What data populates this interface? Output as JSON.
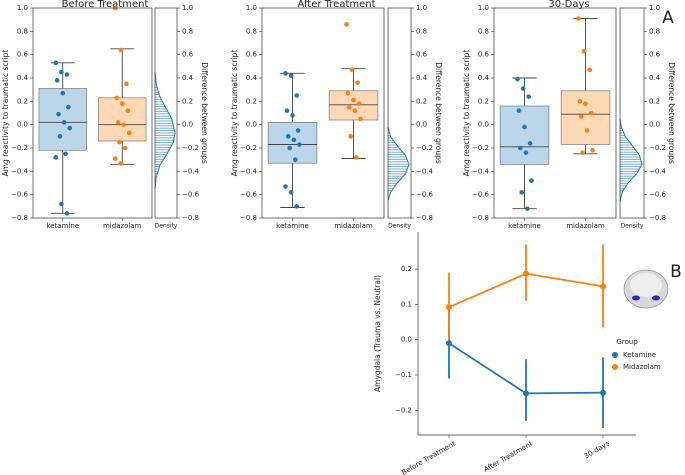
{
  "chart_data": [
    {
      "type": "box",
      "panel_label": "A",
      "title": "Before Treatment",
      "ylabel": "Amg reactivity to traumatic script",
      "y2label": "Difference between groups",
      "density_label": "Density",
      "categories": [
        "ketamine",
        "midazolam"
      ],
      "series": [
        {
          "name": "ketamine",
          "color": "#1f77b4",
          "values": [
            0.53,
            0.45,
            0.43,
            0.38,
            0.27,
            0.15,
            0.09,
            0.02,
            -0.03,
            -0.1,
            -0.25,
            -0.28,
            -0.68,
            -0.76
          ],
          "box": {
            "whislo": -0.76,
            "q1": -0.22,
            "med": 0.02,
            "q3": 0.31,
            "whishi": 0.53
          }
        },
        {
          "name": "midazolam",
          "color": "#ff7f0e",
          "values": [
            1.0,
            0.64,
            0.35,
            0.23,
            0.18,
            0.12,
            0.02,
            0.0,
            -0.07,
            -0.15,
            -0.2,
            -0.29,
            -0.33
          ],
          "box": {
            "whislo": -0.34,
            "q1": -0.14,
            "med": 0.0,
            "q3": 0.23,
            "whishi": 0.65
          }
        }
      ],
      "density": {
        "positions": [
          -0.55,
          -0.45,
          -0.35,
          -0.25,
          -0.15,
          -0.07,
          0.05,
          0.15,
          0.25,
          0.35,
          0.45
        ],
        "values": [
          0,
          0.3,
          1.2,
          3.0,
          4.6,
          5.0,
          4.2,
          2.6,
          1.1,
          0.3,
          0
        ]
      },
      "ylim": [
        -0.8,
        1.0
      ],
      "yticks": [
        {
          "value": -0.8,
          "label": "−0.8"
        },
        {
          "value": -0.6,
          "label": "−0.6"
        },
        {
          "value": -0.4,
          "label": "−0.4"
        },
        {
          "value": -0.2,
          "label": "−0.2"
        },
        {
          "value": 0,
          "label": "0.0"
        },
        0.2,
        0.4,
        0.6,
        0.8,
        {
          "value": 1,
          "label": "1.0"
        }
      ]
    },
    {
      "type": "box",
      "title": "After Treatment",
      "ylabel": "Amg reactivity to traumatic script",
      "y2label": "Difference between groups",
      "density_label": "Density",
      "categories": [
        "ketamine",
        "midazolam"
      ],
      "series": [
        {
          "name": "ketamine",
          "color": "#1f77b4",
          "values": [
            0.44,
            0.42,
            0.25,
            0.12,
            0.08,
            -0.05,
            -0.1,
            -0.13,
            -0.17,
            -0.2,
            -0.3,
            -0.53,
            -0.58,
            -0.7
          ],
          "box": {
            "whislo": -0.71,
            "q1": -0.33,
            "med": -0.17,
            "q3": 0.02,
            "whishi": 0.44
          }
        },
        {
          "name": "midazolam",
          "color": "#ff7f0e",
          "values": [
            0.86,
            0.47,
            0.36,
            0.27,
            0.21,
            0.18,
            0.15,
            0.12,
            0.05,
            -0.1,
            -0.28
          ],
          "box": {
            "whislo": -0.29,
            "q1": 0.04,
            "med": 0.17,
            "q3": 0.29,
            "whishi": 0.48
          }
        }
      ],
      "density": {
        "positions": [
          -0.65,
          -0.58,
          -0.5,
          -0.42,
          -0.34,
          -0.26,
          -0.18,
          -0.1,
          -0.02
        ],
        "values": [
          0,
          0.6,
          2.2,
          4.2,
          5.0,
          4.1,
          2.2,
          0.6,
          0
        ]
      },
      "ylim": [
        -0.8,
        1.0
      ],
      "yticks": [
        {
          "value": -0.8,
          "label": "−0.8"
        },
        {
          "value": -0.6,
          "label": "−0.6"
        },
        {
          "value": -0.4,
          "label": "−0.4"
        },
        {
          "value": -0.2,
          "label": "−0.2"
        },
        {
          "value": 0,
          "label": "0.0"
        },
        0.2,
        0.4,
        0.6,
        0.8,
        {
          "value": 1,
          "label": "1.0"
        }
      ]
    },
    {
      "type": "box",
      "title": "30-Days",
      "ylabel": "Amg reactivity to traumatic script",
      "y2label": "Difference between groups",
      "density_label": "Density",
      "categories": [
        "ketamine",
        "midazolam"
      ],
      "series": [
        {
          "name": "ketamine",
          "color": "#1f77b4",
          "values": [
            0.39,
            0.31,
            0.24,
            0.12,
            -0.02,
            -0.16,
            -0.2,
            -0.24,
            -0.48,
            -0.58,
            -0.72
          ],
          "box": {
            "whislo": -0.72,
            "q1": -0.34,
            "med": -0.19,
            "q3": 0.16,
            "whishi": 0.4
          }
        },
        {
          "name": "midazolam",
          "color": "#ff7f0e",
          "values": [
            0.91,
            0.63,
            0.47,
            0.2,
            0.18,
            0.1,
            0.07,
            -0.05,
            -0.22,
            -0.24
          ],
          "box": {
            "whislo": -0.25,
            "q1": -0.17,
            "med": 0.09,
            "q3": 0.29,
            "whishi": 0.91
          }
        }
      ],
      "density": {
        "positions": [
          -0.66,
          -0.58,
          -0.5,
          -0.42,
          -0.34,
          -0.26,
          -0.18,
          -0.1,
          -0.02,
          0.05
        ],
        "values": [
          0,
          0.5,
          1.8,
          3.8,
          5.0,
          4.4,
          2.8,
          1.2,
          0.3,
          0
        ]
      },
      "ylim": [
        -0.8,
        1.0
      ],
      "yticks": [
        {
          "value": -0.8,
          "label": "−0.8"
        },
        {
          "value": -0.6,
          "label": "−0.6"
        },
        {
          "value": -0.4,
          "label": "−0.4"
        },
        {
          "value": -0.2,
          "label": "−0.2"
        },
        {
          "value": 0,
          "label": "0.0"
        },
        0.2,
        0.4,
        0.6,
        0.8,
        {
          "value": 1,
          "label": "1.0"
        }
      ]
    },
    {
      "type": "line",
      "panel_label": "B",
      "ylabel": "Amygdala (Trauma vs. Neutral)",
      "legend_title": "Group",
      "categories": [
        "Before Treatment",
        "After Treatment",
        "30-days"
      ],
      "series": [
        {
          "name": "Ketamine",
          "color": "#1f77b4",
          "values": [
            -0.01,
            -0.152,
            -0.15
          ],
          "lower": [
            -0.11,
            -0.23,
            -0.25
          ],
          "upper": [
            0.09,
            -0.055,
            -0.05
          ]
        },
        {
          "name": "Midazolam",
          "color": "#ff7f0e",
          "values": [
            0.092,
            0.187,
            0.151
          ],
          "lower": [
            0.0,
            0.11,
            0.035
          ],
          "upper": [
            0.19,
            0.27,
            0.27
          ]
        }
      ],
      "ylim": [
        -0.27,
        0.305
      ],
      "yticks": [
        {
          "value": -0.2,
          "label": "−0.2"
        },
        {
          "value": -0.1,
          "label": "−0.1"
        },
        {
          "value": 0,
          "label": "0.0"
        },
        0.1,
        0.2
      ]
    }
  ]
}
